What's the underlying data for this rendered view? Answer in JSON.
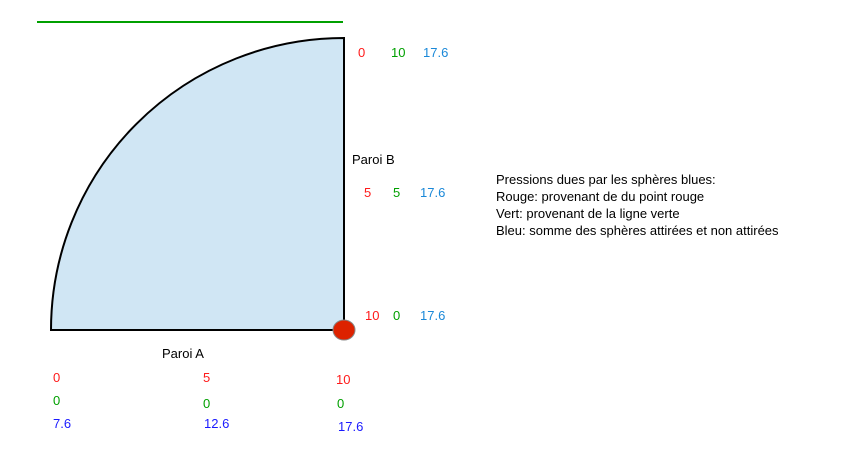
{
  "colors": {
    "red": "#ff1a1a",
    "green": "#00a000",
    "blue_right": "#1a88d8",
    "blue_bottom": "#1a1aff",
    "fill": "#d0e6f4",
    "dot": "#dd2200"
  },
  "labels": {
    "paroi_a": "Paroi A",
    "paroi_b": "Paroi B"
  },
  "legend": {
    "title": "Pressions dues par les sphères blues:",
    "rouge": "Rouge: provenant de du point rouge",
    "vert": "Vert: provenant de la ligne verte",
    "bleu": "Bleu: somme des sphères attirées et non attirées"
  },
  "wall_b": [
    {
      "red": "0",
      "green": "10",
      "blue": "17.6"
    },
    {
      "red": "5",
      "green": "5",
      "blue": "17.6"
    },
    {
      "red": "10",
      "green": "0",
      "blue": "17.6"
    }
  ],
  "wall_a": [
    {
      "red": "0",
      "green": "0",
      "blue": "7.6"
    },
    {
      "red": "5",
      "green": "0",
      "blue": "12.6"
    },
    {
      "red": "10",
      "green": "0",
      "blue": "17.6"
    }
  ]
}
